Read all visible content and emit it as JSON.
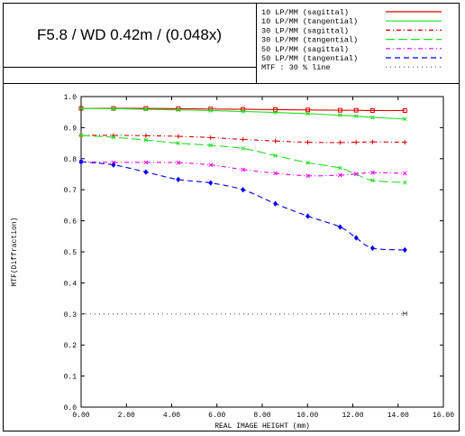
{
  "title": "F5.8 / WD 0.42m / (0.048x)",
  "legend": [
    {
      "label": "10 LP/MM (sagittal)",
      "color": "#dd0000",
      "dash": "solid"
    },
    {
      "label": "10 LP/MM (tangential)",
      "color": "#22dd22",
      "dash": "solid"
    },
    {
      "label": "30 LP/MM (sagittal)",
      "color": "#dd0000",
      "dash": "dash-dot"
    },
    {
      "label": "30 LP/MM (tangential)",
      "color": "#22dd22",
      "dash": "long-dash"
    },
    {
      "label": "50 LP/MM (sagittal)",
      "color": "#ee00ee",
      "dash": "dash-dot"
    },
    {
      "label": "50 LP/MM (tangential)",
      "color": "#0000ee",
      "dash": "dash"
    },
    {
      "label": "MTF : 30 % line",
      "color": "#555555",
      "dash": "dot"
    }
  ],
  "chart_data": {
    "type": "line",
    "xlabel": "REAL IMAGE HEIGHT (mm)",
    "ylabel": "MTF(Diffraction)",
    "xlim": [
      0,
      16
    ],
    "ylim": [
      0,
      1
    ],
    "xticks": [
      "0.00",
      "2.00",
      "4.00",
      "6.00",
      "8.00",
      "10.00",
      "12.00",
      "14.00",
      "16.00"
    ],
    "yticks": [
      "0.0",
      "0.1",
      "0.2",
      "0.3",
      "0.4",
      "0.5",
      "0.6",
      "0.7",
      "0.8",
      "0.9",
      "1.0"
    ],
    "x": [
      0,
      1.43,
      2.86,
      4.29,
      5.72,
      7.15,
      8.58,
      10.01,
      11.44,
      12.15,
      12.87,
      14.3
    ],
    "series": [
      {
        "name": "10 LP/MM (sagittal)",
        "color": "#dd0000",
        "dash": "solid",
        "marker": "square",
        "values": [
          0.962,
          0.962,
          0.962,
          0.961,
          0.96,
          0.959,
          0.958,
          0.957,
          0.956,
          0.956,
          0.955,
          0.955
        ]
      },
      {
        "name": "10 LP/MM (tangential)",
        "color": "#22dd22",
        "dash": "solid",
        "marker": "x",
        "values": [
          0.962,
          0.961,
          0.959,
          0.957,
          0.955,
          0.952,
          0.949,
          0.945,
          0.94,
          0.937,
          0.933,
          0.928
        ]
      },
      {
        "name": "30 LP/MM (sagittal)",
        "color": "#dd0000",
        "dash": "dash-dot",
        "marker": "plus",
        "values": [
          0.875,
          0.875,
          0.874,
          0.872,
          0.868,
          0.862,
          0.857,
          0.853,
          0.852,
          0.853,
          0.854,
          0.853
        ]
      },
      {
        "name": "30 LP/MM (tangential)",
        "color": "#22dd22",
        "dash": "long-dash",
        "marker": "x",
        "values": [
          0.875,
          0.869,
          0.86,
          0.85,
          0.843,
          0.833,
          0.81,
          0.787,
          0.77,
          0.75,
          0.73,
          0.723
        ]
      },
      {
        "name": "50 LP/MM (sagittal)",
        "color": "#ee00ee",
        "dash": "dash-dot",
        "marker": "x",
        "values": [
          0.79,
          0.788,
          0.788,
          0.787,
          0.78,
          0.765,
          0.753,
          0.745,
          0.747,
          0.751,
          0.755,
          0.753
        ]
      },
      {
        "name": "50 LP/MM (tangential)",
        "color": "#0000ee",
        "dash": "dash",
        "marker": "diamond",
        "values": [
          0.79,
          0.78,
          0.757,
          0.733,
          0.722,
          0.7,
          0.655,
          0.615,
          0.58,
          0.545,
          0.512,
          0.506
        ]
      },
      {
        "name": "MTF : 30 % line",
        "color": "#555555",
        "dash": "dot",
        "marker": "m-end",
        "values": [
          0.3,
          null,
          null,
          null,
          null,
          null,
          null,
          null,
          null,
          null,
          null,
          0.3
        ]
      }
    ]
  }
}
